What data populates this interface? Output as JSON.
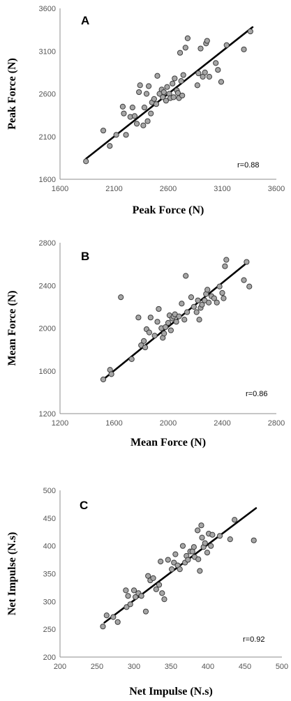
{
  "chart_data": [
    {
      "type": "scatter",
      "panel": "A",
      "xlabel": "Peak Force (N)",
      "ylabel": "Peak Force (N)",
      "xlim": [
        1600,
        3600
      ],
      "ylim": [
        1600,
        3600
      ],
      "xticks": [
        "1600",
        "2100",
        "2600",
        "3100",
        "3600"
      ],
      "yticks": [
        "1600",
        "2100",
        "2600",
        "3100",
        "3600"
      ],
      "annotation": "r=0.88",
      "trendline": {
        "from": [
          1840,
          1840
        ],
        "to": [
          3380,
          3380
        ]
      },
      "points": [
        {
          "x": 1840,
          "y": 1810
        },
        {
          "x": 2000,
          "y": 2170
        },
        {
          "x": 2060,
          "y": 1990
        },
        {
          "x": 2120,
          "y": 2120
        },
        {
          "x": 2180,
          "y": 2450
        },
        {
          "x": 2190,
          "y": 2370
        },
        {
          "x": 2210,
          "y": 2120
        },
        {
          "x": 2250,
          "y": 2330
        },
        {
          "x": 2270,
          "y": 2440
        },
        {
          "x": 2290,
          "y": 2340
        },
        {
          "x": 2310,
          "y": 2250
        },
        {
          "x": 2330,
          "y": 2620
        },
        {
          "x": 2340,
          "y": 2700
        },
        {
          "x": 2370,
          "y": 2230
        },
        {
          "x": 2380,
          "y": 2440
        },
        {
          "x": 2400,
          "y": 2600
        },
        {
          "x": 2410,
          "y": 2280
        },
        {
          "x": 2420,
          "y": 2690
        },
        {
          "x": 2440,
          "y": 2370
        },
        {
          "x": 2450,
          "y": 2500
        },
        {
          "x": 2470,
          "y": 2540
        },
        {
          "x": 2490,
          "y": 2480
        },
        {
          "x": 2500,
          "y": 2810
        },
        {
          "x": 2520,
          "y": 2600
        },
        {
          "x": 2540,
          "y": 2650
        },
        {
          "x": 2550,
          "y": 2560
        },
        {
          "x": 2560,
          "y": 2620
        },
        {
          "x": 2580,
          "y": 2520
        },
        {
          "x": 2590,
          "y": 2680
        },
        {
          "x": 2610,
          "y": 2600
        },
        {
          "x": 2620,
          "y": 2550
        },
        {
          "x": 2640,
          "y": 2720
        },
        {
          "x": 2650,
          "y": 2560
        },
        {
          "x": 2660,
          "y": 2780
        },
        {
          "x": 2680,
          "y": 2640
        },
        {
          "x": 2690,
          "y": 2610
        },
        {
          "x": 2700,
          "y": 2550
        },
        {
          "x": 2710,
          "y": 3080
        },
        {
          "x": 2720,
          "y": 2750
        },
        {
          "x": 2730,
          "y": 2580
        },
        {
          "x": 2740,
          "y": 2820
        },
        {
          "x": 2760,
          "y": 3140
        },
        {
          "x": 2780,
          "y": 3250
        },
        {
          "x": 2870,
          "y": 2700
        },
        {
          "x": 2880,
          "y": 2840
        },
        {
          "x": 2900,
          "y": 3130
        },
        {
          "x": 2920,
          "y": 2800
        },
        {
          "x": 2940,
          "y": 2850
        },
        {
          "x": 2950,
          "y": 3190
        },
        {
          "x": 2960,
          "y": 3220
        },
        {
          "x": 2980,
          "y": 2800
        },
        {
          "x": 3040,
          "y": 2960
        },
        {
          "x": 3060,
          "y": 2880
        },
        {
          "x": 3090,
          "y": 2740
        },
        {
          "x": 3140,
          "y": 3170
        },
        {
          "x": 3300,
          "y": 3120
        },
        {
          "x": 3360,
          "y": 3330
        }
      ]
    },
    {
      "type": "scatter",
      "panel": "B",
      "xlabel": "Mean Force (N)",
      "ylabel": "Mean Force (N)",
      "xlim": [
        1200,
        2800
      ],
      "ylim": [
        1200,
        2800
      ],
      "xticks": [
        "1200",
        "1600",
        "2000",
        "2400",
        "2800"
      ],
      "yticks": [
        "1200",
        "1600",
        "2000",
        "2400",
        "2800"
      ],
      "annotation": "r=0.86",
      "trendline": {
        "from": [
          1520,
          1520
        ],
        "to": [
          2590,
          2620
        ]
      },
      "points": [
        {
          "x": 1520,
          "y": 1520
        },
        {
          "x": 1570,
          "y": 1610
        },
        {
          "x": 1580,
          "y": 1570
        },
        {
          "x": 1650,
          "y": 2290
        },
        {
          "x": 1730,
          "y": 1710
        },
        {
          "x": 1780,
          "y": 2100
        },
        {
          "x": 1800,
          "y": 1840
        },
        {
          "x": 1820,
          "y": 1880
        },
        {
          "x": 1830,
          "y": 1820
        },
        {
          "x": 1840,
          "y": 1990
        },
        {
          "x": 1860,
          "y": 1960
        },
        {
          "x": 1870,
          "y": 2100
        },
        {
          "x": 1900,
          "y": 1930
        },
        {
          "x": 1920,
          "y": 2060
        },
        {
          "x": 1930,
          "y": 2180
        },
        {
          "x": 1950,
          "y": 2000
        },
        {
          "x": 1960,
          "y": 1910
        },
        {
          "x": 1970,
          "y": 1950
        },
        {
          "x": 1980,
          "y": 2010
        },
        {
          "x": 2000,
          "y": 2050
        },
        {
          "x": 2010,
          "y": 2120
        },
        {
          "x": 2020,
          "y": 1980
        },
        {
          "x": 2030,
          "y": 2090
        },
        {
          "x": 2040,
          "y": 2110
        },
        {
          "x": 2050,
          "y": 2130
        },
        {
          "x": 2060,
          "y": 2060
        },
        {
          "x": 2080,
          "y": 2110
        },
        {
          "x": 2100,
          "y": 2230
        },
        {
          "x": 2120,
          "y": 2080
        },
        {
          "x": 2130,
          "y": 2490
        },
        {
          "x": 2140,
          "y": 2150
        },
        {
          "x": 2170,
          "y": 2290
        },
        {
          "x": 2190,
          "y": 2200
        },
        {
          "x": 2210,
          "y": 2150
        },
        {
          "x": 2220,
          "y": 2260
        },
        {
          "x": 2230,
          "y": 2080
        },
        {
          "x": 2240,
          "y": 2190
        },
        {
          "x": 2250,
          "y": 2220
        },
        {
          "x": 2270,
          "y": 2260
        },
        {
          "x": 2280,
          "y": 2320
        },
        {
          "x": 2290,
          "y": 2360
        },
        {
          "x": 2300,
          "y": 2240
        },
        {
          "x": 2320,
          "y": 2300
        },
        {
          "x": 2340,
          "y": 2280
        },
        {
          "x": 2360,
          "y": 2240
        },
        {
          "x": 2380,
          "y": 2390
        },
        {
          "x": 2400,
          "y": 2330
        },
        {
          "x": 2410,
          "y": 2280
        },
        {
          "x": 2420,
          "y": 2580
        },
        {
          "x": 2430,
          "y": 2640
        },
        {
          "x": 2560,
          "y": 2450
        },
        {
          "x": 2580,
          "y": 2620
        },
        {
          "x": 2600,
          "y": 2390
        }
      ]
    },
    {
      "type": "scatter",
      "panel": "C",
      "xlabel": "Net Impulse (N.s)",
      "ylabel": "Net Impulse (N.s)",
      "xlim": [
        200,
        500
      ],
      "ylim": [
        200,
        500
      ],
      "xticks": [
        "200",
        "250",
        "300",
        "350",
        "400",
        "450",
        "500"
      ],
      "yticks": [
        "200",
        "250",
        "300",
        "350",
        "400",
        "450",
        "500"
      ],
      "annotation": "r=0.92",
      "trendline": {
        "from": [
          260,
          262
        ],
        "to": [
          465,
          468
        ]
      },
      "points": [
        {
          "x": 258,
          "y": 255
        },
        {
          "x": 263,
          "y": 275
        },
        {
          "x": 272,
          "y": 272
        },
        {
          "x": 278,
          "y": 263
        },
        {
          "x": 289,
          "y": 320
        },
        {
          "x": 290,
          "y": 290
        },
        {
          "x": 292,
          "y": 310
        },
        {
          "x": 295,
          "y": 295
        },
        {
          "x": 300,
          "y": 320
        },
        {
          "x": 302,
          "y": 308
        },
        {
          "x": 306,
          "y": 315
        },
        {
          "x": 310,
          "y": 310
        },
        {
          "x": 316,
          "y": 282
        },
        {
          "x": 319,
          "y": 346
        },
        {
          "x": 322,
          "y": 338
        },
        {
          "x": 326,
          "y": 342
        },
        {
          "x": 330,
          "y": 322
        },
        {
          "x": 334,
          "y": 330
        },
        {
          "x": 336,
          "y": 372
        },
        {
          "x": 338,
          "y": 315
        },
        {
          "x": 341,
          "y": 304
        },
        {
          "x": 346,
          "y": 375
        },
        {
          "x": 351,
          "y": 358
        },
        {
          "x": 354,
          "y": 370
        },
        {
          "x": 356,
          "y": 385
        },
        {
          "x": 359,
          "y": 365
        },
        {
          "x": 362,
          "y": 358
        },
        {
          "x": 366,
          "y": 400
        },
        {
          "x": 369,
          "y": 370
        },
        {
          "x": 371,
          "y": 382
        },
        {
          "x": 373,
          "y": 375
        },
        {
          "x": 376,
          "y": 390
        },
        {
          "x": 379,
          "y": 390
        },
        {
          "x": 381,
          "y": 398
        },
        {
          "x": 382,
          "y": 380
        },
        {
          "x": 386,
          "y": 428
        },
        {
          "x": 387,
          "y": 376
        },
        {
          "x": 389,
          "y": 355
        },
        {
          "x": 391,
          "y": 437
        },
        {
          "x": 392,
          "y": 415
        },
        {
          "x": 394,
          "y": 398
        },
        {
          "x": 396,
          "y": 405
        },
        {
          "x": 399,
          "y": 388
        },
        {
          "x": 401,
          "y": 422
        },
        {
          "x": 404,
          "y": 400
        },
        {
          "x": 406,
          "y": 420
        },
        {
          "x": 416,
          "y": 418
        },
        {
          "x": 430,
          "y": 412
        },
        {
          "x": 436,
          "y": 447
        },
        {
          "x": 462,
          "y": 410
        }
      ]
    }
  ]
}
